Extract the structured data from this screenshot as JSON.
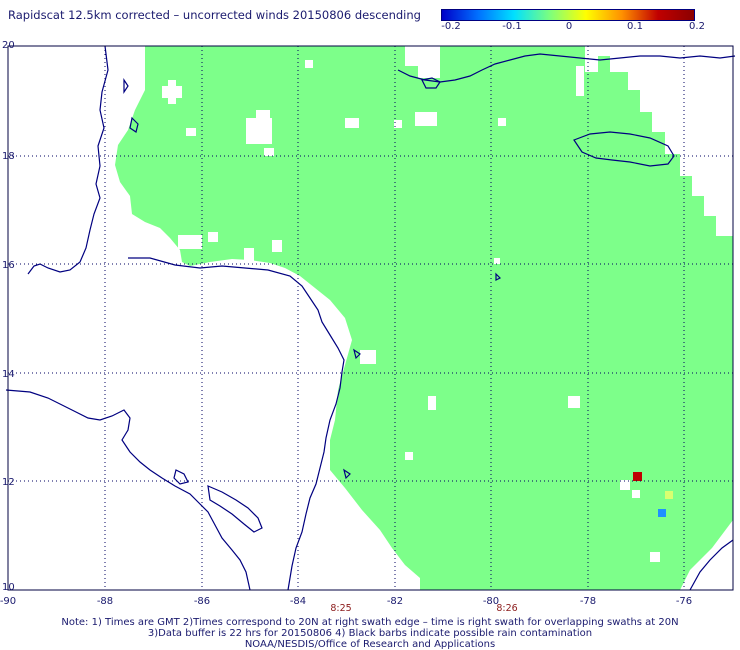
{
  "title": "Rapidscat 12.5km corrected – uncorrected winds 20150806 descending",
  "colorbar": {
    "ticks": [
      "-0.2",
      "-0.1",
      "0",
      "0.1",
      "0.2"
    ],
    "colors": [
      "#0000c8",
      "#0070ff",
      "#00e0ff",
      "#7dff7d",
      "#ffff00",
      "#ff9000",
      "#c00000",
      "#8b0000"
    ]
  },
  "axes": {
    "lat_labels": [
      "20",
      "18",
      "16",
      "14",
      "12",
      "10"
    ],
    "lon_labels": [
      "-90",
      "-88",
      "-86",
      "-84",
      "-82",
      "-80",
      "-78",
      "-76"
    ]
  },
  "time_labels": [
    "8:25",
    "8:26"
  ],
  "colors": {
    "swath": "#7dff8a",
    "coast": "#000080",
    "grid": "#000060",
    "cell_red": "#c00000",
    "cell_yellow": "#d8ff70",
    "cell_blue": "#1e90ff"
  },
  "notes": [
    "Note: 1) Times are GMT 2)Times correspond to 20N at right swath edge – time is right swath for overlapping swaths at 20N",
    "3)Data buffer is 22 hrs for 20150806 4) Black barbs indicate possible rain contamination",
    "NOAA/NESDIS/Office of Research and Applications"
  ]
}
